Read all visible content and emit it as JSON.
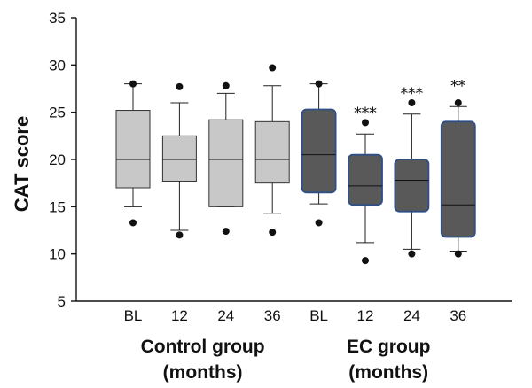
{
  "chart_data": {
    "type": "box",
    "ylabel": "CAT score",
    "ylim": [
      5,
      35
    ],
    "yticks": [
      5,
      10,
      15,
      20,
      25,
      30,
      35
    ],
    "categories": [
      "BL",
      "12",
      "24",
      "36",
      "BL",
      "12",
      "24",
      "36"
    ],
    "groups": [
      {
        "label_line1": "Control group",
        "label_line2": "(months)",
        "indices": [
          0,
          1,
          2,
          3
        ],
        "color": "#c8c8c8"
      },
      {
        "label_line1": "EC group",
        "label_line2": "(months)",
        "indices": [
          4,
          5,
          6,
          7
        ],
        "color": "#595959"
      }
    ],
    "boxes": [
      {
        "category": "BL",
        "group": "Control",
        "whisker_low": 15,
        "q1": 17,
        "median": 20,
        "q3": 25.2,
        "whisker_high": 28,
        "outliers": [
          13.3,
          28
        ],
        "significance": ""
      },
      {
        "category": "12",
        "group": "Control",
        "whisker_low": 12.5,
        "q1": 17.7,
        "median": 20,
        "q3": 22.5,
        "whisker_high": 26,
        "outliers": [
          12,
          27.7
        ],
        "significance": ""
      },
      {
        "category": "24",
        "group": "Control",
        "whisker_low": 15,
        "q1": 15,
        "median": 20,
        "q3": 24.2,
        "whisker_high": 27,
        "outliers": [
          12.4,
          27.8
        ],
        "significance": ""
      },
      {
        "category": "36",
        "group": "Control",
        "whisker_low": 14.3,
        "q1": 17.5,
        "median": 20,
        "q3": 24,
        "whisker_high": 27.8,
        "outliers": [
          12.3,
          29.7
        ],
        "significance": ""
      },
      {
        "category": "BL",
        "group": "EC",
        "whisker_low": 15.3,
        "q1": 16.5,
        "median": 20.5,
        "q3": 25.3,
        "whisker_high": 28,
        "outliers": [
          13.3,
          28
        ],
        "significance": ""
      },
      {
        "category": "12",
        "group": "EC",
        "whisker_low": 11.2,
        "q1": 15.2,
        "median": 17.2,
        "q3": 20.5,
        "whisker_high": 22.7,
        "outliers": [
          9.3,
          23.9
        ],
        "significance": "***"
      },
      {
        "category": "24",
        "group": "EC",
        "whisker_low": 10.5,
        "q1": 14.5,
        "median": 17.8,
        "q3": 20,
        "whisker_high": 24.8,
        "outliers": [
          10,
          26
        ],
        "significance": "***"
      },
      {
        "category": "36",
        "group": "EC",
        "whisker_low": 10.3,
        "q1": 11.8,
        "median": 15.2,
        "q3": 24,
        "whisker_high": 25.6,
        "outliers": [
          10,
          26
        ],
        "significance": "**"
      }
    ],
    "grid": false,
    "legend": "none"
  }
}
